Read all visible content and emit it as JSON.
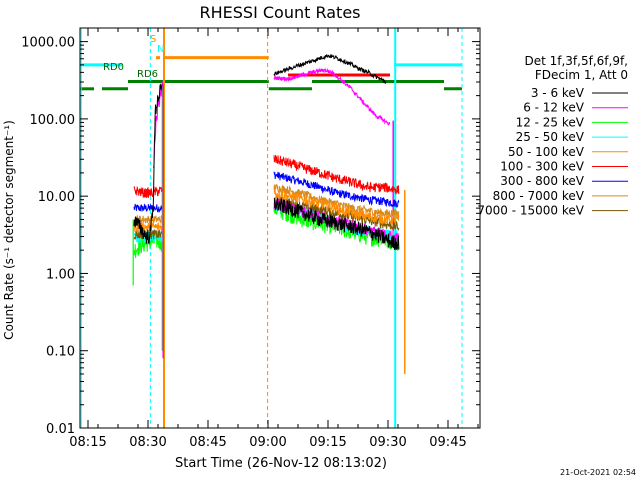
{
  "chart_data": {
    "type": "line",
    "title": "RHESSI Count Rates",
    "xlabel": "Start Time (26-Nov-12 08:13:02)",
    "ylabel": "Count Rate (s⁻¹ detector segment⁻¹)",
    "yscale": "log",
    "ylim": [
      0.01,
      1500
    ],
    "xlim_minutes": [
      0,
      100
    ],
    "x_ticks": [
      {
        "label": "08:15",
        "min": 2
      },
      {
        "label": "08:30",
        "min": 17
      },
      {
        "label": "08:45",
        "min": 32
      },
      {
        "label": "09:00",
        "min": 47
      },
      {
        "label": "09:15",
        "min": 62
      },
      {
        "label": "09:30",
        "min": 77
      },
      {
        "label": "09:45",
        "min": 92
      }
    ],
    "y_ticks": [
      {
        "label": "1000.00",
        "value": 1000
      },
      {
        "label": "100.00",
        "value": 100
      },
      {
        "label": "10.00",
        "value": 10
      },
      {
        "label": "1.00",
        "value": 1
      },
      {
        "label": "0.10",
        "value": 0.1
      },
      {
        "label": "0.01",
        "value": 0.01
      }
    ],
    "legend_header": [
      "Det 1f,3f,5f,6f,9f,",
      "FDecim 1, Att 0"
    ],
    "series": [
      {
        "name": "3 - 6 keV",
        "color": "#000000",
        "seg1": {
          "x": [
            13.5,
            15,
            16.5,
            17.5,
            18.3,
            18.8,
            19.5,
            20,
            20.5
          ],
          "y": [
            5,
            4,
            3,
            3,
            8,
            120,
            190,
            220,
            250
          ]
        },
        "seg2": {
          "x": [
            48.5,
            52,
            56,
            60,
            64,
            68,
            72,
            75,
            77,
            78,
            79,
            79.7
          ],
          "y": [
            8,
            7,
            6,
            5,
            4.5,
            4,
            3.5,
            3,
            2.7,
            2.5,
            2.5,
            2.5
          ]
        },
        "peak": {
          "x": [
            48.5,
            52,
            55,
            58,
            60,
            62,
            64,
            66,
            68,
            70,
            72,
            74,
            76.5
          ],
          "y": [
            380,
            440,
            500,
            560,
            610,
            660,
            620,
            560,
            500,
            440,
            400,
            350,
            300
          ]
        }
      },
      {
        "name": "6 - 12 keV",
        "color": "#ff00ff",
        "seg1": {
          "x": [
            18.3,
            19,
            19.8,
            20.3,
            20.8
          ],
          "y": [
            20,
            90,
            170,
            230,
            270
          ]
        },
        "seg2": {
          "x": [
            48.5,
            79.7
          ],
          "y": [
            8,
            2.8
          ]
        },
        "peak": {
          "x": [
            48.5,
            52,
            55,
            58,
            61,
            63,
            65,
            68,
            71,
            74,
            76,
            77.5
          ],
          "y": [
            340,
            330,
            360,
            400,
            430,
            400,
            330,
            240,
            160,
            110,
            95,
            85
          ]
        }
      },
      {
        "name": "12 - 25 keV",
        "color": "#00ff00",
        "seg1": {
          "x": [
            13.5,
            15,
            17,
            19,
            20.5
          ],
          "y": [
            2,
            2.3,
            2.5,
            2.7,
            2.5
          ]
        },
        "seg2": {
          "x": [
            48.5,
            52,
            56,
            60,
            64,
            68,
            72,
            76,
            79.7
          ],
          "y": [
            7,
            6,
            5,
            4.5,
            4,
            3.5,
            3,
            2.8,
            2.5
          ]
        }
      },
      {
        "name": "25 - 50 keV",
        "color": "#00ffff",
        "seg1": {
          "x": [
            13.5,
            16,
            18,
            20.5
          ],
          "y": [
            3,
            3,
            3,
            3
          ]
        },
        "seg2": {
          "x": [
            48.5,
            52,
            56,
            60,
            64,
            68,
            72,
            76,
            79.7
          ],
          "y": [
            7.5,
            7,
            6.3,
            5.5,
            4.5,
            3.8,
            3.5,
            3.2,
            3
          ]
        }
      },
      {
        "name": "50 - 100 keV",
        "color": "#ff8c00",
        "seg1": {
          "x": [
            13.5,
            16,
            18,
            20.5
          ],
          "y": [
            4,
            4,
            4,
            4
          ]
        },
        "seg2": {
          "x": [
            48.5,
            52,
            56,
            60,
            64,
            68,
            72,
            76,
            79.7
          ],
          "y": [
            11,
            10,
            9,
            8,
            7,
            6,
            5.5,
            5,
            5
          ]
        }
      },
      {
        "name": "100 - 300 keV",
        "color": "#ff0000",
        "seg1": {
          "x": [
            13.5,
            16,
            18,
            20.5
          ],
          "y": [
            12,
            11,
            11,
            12
          ]
        },
        "seg2": {
          "x": [
            48.5,
            52,
            56,
            60,
            64,
            68,
            72,
            76,
            79.7
          ],
          "y": [
            30,
            27,
            23,
            20,
            17,
            15,
            13,
            13,
            12
          ]
        }
      },
      {
        "name": "300 - 800 keV",
        "color": "#0000ff",
        "seg1": {
          "x": [
            13.5,
            16,
            18,
            20.5
          ],
          "y": [
            7,
            7,
            7,
            7
          ]
        },
        "seg2": {
          "x": [
            48.5,
            52,
            56,
            60,
            64,
            68,
            72,
            76,
            79.7
          ],
          "y": [
            19,
            17,
            15,
            13,
            11,
            10,
            9,
            8.5,
            8
          ]
        }
      },
      {
        "name": "800 - 7000 keV",
        "color": "#d98a1e",
        "seg1": {
          "x": [
            13.5,
            16,
            18,
            20.5
          ],
          "y": [
            5,
            5,
            5,
            5
          ]
        },
        "seg2": {
          "x": [
            48.5,
            52,
            56,
            60,
            64,
            68,
            72,
            76,
            79.7
          ],
          "y": [
            13,
            12,
            10.5,
            9,
            8,
            7,
            6.5,
            6,
            6
          ]
        }
      },
      {
        "name": "7000 - 15000 keV",
        "color": "#7a5a00",
        "seg1": {
          "x": [
            13.5,
            20.5
          ],
          "y": [
            3.2,
            3.2
          ]
        },
        "seg2": {
          "x": [
            48.5,
            79.7
          ],
          "y": [
            9,
            4
          ]
        }
      }
    ],
    "annotations": [
      {
        "text": "RD0",
        "color": "#006400"
      },
      {
        "text": "RD6",
        "color": "#006400"
      },
      {
        "text": "S",
        "color": "#ff8c00"
      },
      {
        "text": "N",
        "color": "#00ffff"
      }
    ],
    "timestamp": "21-Oct-2021 02:54"
  }
}
